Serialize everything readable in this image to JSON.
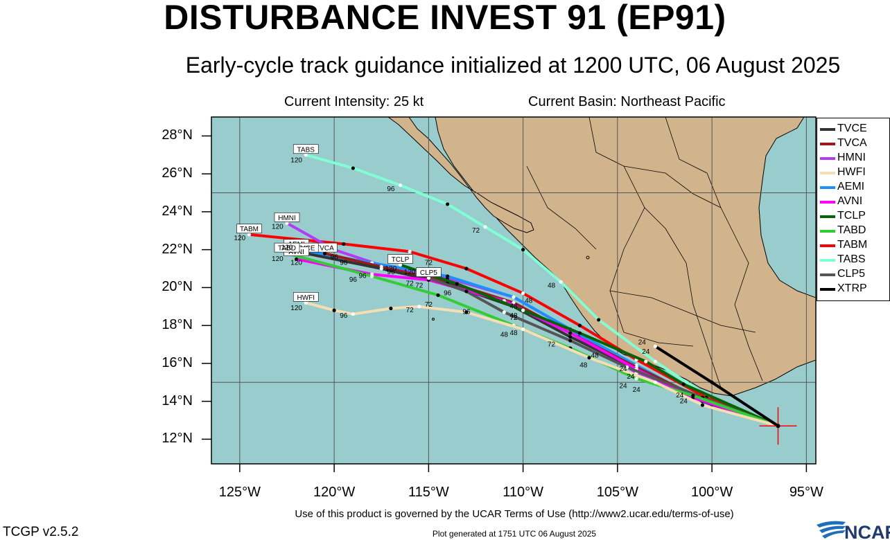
{
  "title": "DISTURBANCE INVEST 91 (EP91)",
  "subtitle": "Early-cycle track guidance initialized at 1200 UTC, 06 August 2025",
  "current_intensity": "Current Intensity: 25 kt",
  "current_basin": "Current Basin: Northeast Pacific",
  "lat_labels": [
    "28°N",
    "26°N",
    "24°N",
    "22°N",
    "20°N",
    "18°N",
    "16°N",
    "14°N",
    "12°N"
  ],
  "lon_labels": [
    "125°W",
    "120°W",
    "115°W",
    "110°W",
    "105°W",
    "100°W",
    "95°W"
  ],
  "terms": "Use of this product is governed by the UCAR Terms of Use (http://www2.ucar.edu/terms-of-use)",
  "generated": "Plot generated at 1751 UTC   06 August 2025",
  "version": "TCGP v2.5.2",
  "logo_text": "NCAR",
  "colors": {
    "ocean": "#99cccc",
    "land": "#d2b48c",
    "storm_marker": "#ff0000"
  },
  "legend": [
    {
      "name": "TVCE",
      "color": "#333333"
    },
    {
      "name": "TVCA",
      "color": "#9b1b1b"
    },
    {
      "name": "HMNI",
      "color": "#b23cf5"
    },
    {
      "name": "HWFI",
      "color": "#f5deb3"
    },
    {
      "name": "AEMI",
      "color": "#1e8fff"
    },
    {
      "name": "AVNI",
      "color": "#ff00ff"
    },
    {
      "name": "TCLP",
      "color": "#006400"
    },
    {
      "name": "TABD",
      "color": "#32cd32"
    },
    {
      "name": "TABM",
      "color": "#ff0000"
    },
    {
      "name": "TABS",
      "color": "#7fffd4"
    },
    {
      "name": "CLP5",
      "color": "#555555"
    },
    {
      "name": "XTRP",
      "color": "#000000"
    }
  ],
  "map": {
    "lon_range": [
      -126.5,
      -94.5
    ],
    "lat_range": [
      10.7,
      29
    ],
    "initial_position": {
      "lat": 12.7,
      "lon": -96.5
    },
    "tracks": [
      {
        "name": "TABS",
        "color": "#7fffd4",
        "label": "TABS",
        "label_pos": {
          "lat": 27.0,
          "lon": -121.5
        },
        "points": [
          [
            12.7,
            -96.5
          ],
          [
            14.1,
            -100.0
          ],
          [
            16.1,
            -103.0
          ],
          [
            18.3,
            -106.0
          ],
          [
            20.3,
            -108.0
          ],
          [
            22.0,
            -110.0
          ],
          [
            23.2,
            -112.0
          ],
          [
            24.4,
            -114.0
          ],
          [
            25.4,
            -116.5
          ],
          [
            26.3,
            -119.0
          ],
          [
            27.0,
            -121.5
          ]
        ],
        "hour_labels": [
          {
            "text": "24",
            "lat": 16.5,
            "lon": -103.5
          },
          {
            "text": "48",
            "lat": 20.0,
            "lon": -108.5
          },
          {
            "text": "72",
            "lat": 22.9,
            "lon": -112.5
          },
          {
            "text": "96",
            "lat": 25.1,
            "lon": -117.0
          },
          {
            "text": "120",
            "lat": 26.6,
            "lon": -122.0
          }
        ]
      },
      {
        "name": "TABM",
        "color": "#ff0000",
        "label": "TABM",
        "label_pos": {
          "lat": 22.8,
          "lon": -124.5
        },
        "points": [
          [
            12.7,
            -96.5
          ],
          [
            14.2,
            -100.3
          ],
          [
            16.2,
            -104.0
          ],
          [
            18.0,
            -107.0
          ],
          [
            19.7,
            -110.0
          ],
          [
            21.0,
            -113.0
          ],
          [
            21.9,
            -116.0
          ],
          [
            22.3,
            -119.5
          ],
          [
            22.8,
            -124.5
          ]
        ],
        "hour_labels": [
          {
            "text": "72",
            "lat": 21.2,
            "lon": -115.0
          },
          {
            "text": "120",
            "lat": 22.5,
            "lon": -125.0
          }
        ]
      },
      {
        "name": "HMNI",
        "color": "#b23cf5",
        "label": "HMNI",
        "label_pos": {
          "lat": 23.4,
          "lon": -122.5
        },
        "points": [
          [
            12.7,
            -96.5
          ],
          [
            13.8,
            -100.0
          ],
          [
            15.5,
            -104.0
          ],
          [
            17.5,
            -107.0
          ],
          [
            19.5,
            -110.5
          ],
          [
            20.5,
            -114.0
          ],
          [
            21.0,
            -117.0
          ],
          [
            22.0,
            -120.0
          ],
          [
            23.4,
            -122.5
          ]
        ],
        "hour_labels": [
          {
            "text": "96",
            "lat": 21.5,
            "lon": -120.0
          },
          {
            "text": "120",
            "lat": 23.1,
            "lon": -123.0
          }
        ]
      },
      {
        "name": "AEMI",
        "color": "#1e8fff",
        "label": "AEMI",
        "label_pos": {
          "lat": 22.0,
          "lon": -122.0
        },
        "points": [
          [
            12.7,
            -96.5
          ],
          [
            14.0,
            -100.5
          ],
          [
            15.9,
            -104.0
          ],
          [
            17.8,
            -107.5
          ],
          [
            19.5,
            -110.5
          ],
          [
            20.6,
            -114.0
          ],
          [
            21.3,
            -118.0
          ],
          [
            22.0,
            -122.0
          ]
        ],
        "hour_labels": [
          {
            "text": "96",
            "lat": 21.2,
            "lon": -119.5
          }
        ]
      },
      {
        "name": "TVCA",
        "color": "#9b1b1b",
        "label": "TVCA",
        "label_pos": {
          "lat": 21.8,
          "lon": -120.5
        },
        "points": [
          [
            12.7,
            -96.5
          ],
          [
            14.1,
            -100.5
          ],
          [
            15.8,
            -104.0
          ],
          [
            17.6,
            -107.5
          ],
          [
            19.2,
            -110.5
          ],
          [
            20.3,
            -114.0
          ],
          [
            21.1,
            -117.5
          ],
          [
            21.8,
            -120.5
          ]
        ],
        "hour_labels": []
      },
      {
        "name": "TVCE",
        "color": "#333333",
        "label": "TVCE",
        "label_pos": {
          "lat": 21.8,
          "lon": -121.5
        },
        "points": [
          [
            12.7,
            -96.5
          ],
          [
            14.0,
            -100.5
          ],
          [
            15.7,
            -104.0
          ],
          [
            17.4,
            -107.5
          ],
          [
            19.0,
            -110.5
          ],
          [
            20.2,
            -114.0
          ],
          [
            21.0,
            -117.5
          ],
          [
            21.8,
            -121.5
          ]
        ],
        "hour_labels": [
          {
            "text": "48",
            "lat": 18.9,
            "lon": -110.5
          }
        ]
      },
      {
        "name": "AVNI",
        "color": "#ff00ff",
        "label": "AVNI",
        "label_pos": {
          "lat": 21.6,
          "lon": -122.0
        },
        "points": [
          [
            12.7,
            -96.5
          ],
          [
            14.2,
            -101.0
          ],
          [
            15.7,
            -104.0
          ],
          [
            17.6,
            -107.5
          ],
          [
            19.3,
            -111.0
          ],
          [
            20.4,
            -115.0
          ],
          [
            20.7,
            -118.0
          ],
          [
            21.5,
            -122.0
          ]
        ],
        "hour_labels": [
          {
            "text": "120",
            "lat": 21.4,
            "lon": -123.0
          }
        ]
      },
      {
        "name": "TCLP",
        "color": "#006400",
        "label": "TCLP",
        "label_pos": {
          "lat": 21.2,
          "lon": -116.5
        },
        "points": [
          [
            12.7,
            -96.5
          ],
          [
            14.9,
            -101.5
          ],
          [
            16.1,
            -103.5
          ],
          [
            17.6,
            -107.0
          ],
          [
            18.8,
            -110.0
          ],
          [
            20.2,
            -113.5
          ],
          [
            21.2,
            -116.5
          ]
        ],
        "hour_labels": [
          {
            "text": "96",
            "lat": 20.7,
            "lon": -117.0
          },
          {
            "text": "120",
            "lat": 20.7,
            "lon": -116.0
          }
        ]
      },
      {
        "name": "CLP5",
        "color": "#555555",
        "label": "CLP5",
        "label_pos": {
          "lat": 20.5,
          "lon": -115.0
        },
        "points": [
          [
            12.7,
            -96.5
          ],
          [
            14.2,
            -100.5
          ],
          [
            15.8,
            -104.5
          ],
          [
            17.2,
            -107.5
          ],
          [
            18.7,
            -111.0
          ],
          [
            19.8,
            -113.0
          ],
          [
            20.5,
            -115.0
          ]
        ],
        "hour_labels": [
          {
            "text": "72",
            "lat": 20.0,
            "lon": -115.5
          }
        ]
      },
      {
        "name": "TABD",
        "color": "#32cd32",
        "label": "TABD",
        "label_pos": {
          "lat": 21.8,
          "lon": -122.5
        },
        "points": [
          [
            12.7,
            -96.5
          ],
          [
            14.3,
            -101.0
          ],
          [
            15.2,
            -104.0
          ],
          [
            16.8,
            -107.5
          ],
          [
            18.0,
            -110.5
          ],
          [
            19.6,
            -114.5
          ],
          [
            20.6,
            -118.0
          ],
          [
            21.8,
            -122.5
          ]
        ],
        "hour_labels": [
          {
            "text": "24",
            "lat": 14.5,
            "lon": -104.0
          },
          {
            "text": "48",
            "lat": 17.5,
            "lon": -110.5
          },
          {
            "text": "96",
            "lat": 20.3,
            "lon": -119.0
          }
        ]
      },
      {
        "name": "HWFI",
        "color": "#f5deb3",
        "label": "HWFI",
        "label_pos": {
          "lat": 19.2,
          "lon": -121.5
        },
        "points": [
          [
            12.7,
            -96.5
          ],
          [
            13.8,
            -100.5
          ],
          [
            15.0,
            -103.0
          ],
          [
            16.3,
            -106.5
          ],
          [
            17.8,
            -110.0
          ],
          [
            18.7,
            -113.0
          ],
          [
            19.0,
            -115.5
          ],
          [
            18.9,
            -117.0
          ],
          [
            18.6,
            -119.0
          ],
          [
            18.8,
            -120.0
          ],
          [
            19.2,
            -121.5
          ]
        ],
        "hour_labels": [
          {
            "text": "72",
            "lat": 18.7,
            "lon": -116.0
          },
          {
            "text": "96",
            "lat": 18.4,
            "lon": -119.5
          },
          {
            "text": "120",
            "lat": 18.8,
            "lon": -122.0
          }
        ]
      },
      {
        "name": "XTRP",
        "color": "#000000",
        "label": "",
        "label_pos": null,
        "points": [
          [
            12.7,
            -96.5
          ],
          [
            15.0,
            -100.0
          ],
          [
            16.9,
            -103.0
          ]
        ],
        "hour_labels": [
          {
            "text": "24",
            "lat": 17.0,
            "lon": -103.7
          }
        ]
      }
    ],
    "extra_hour_labels": [
      {
        "text": "24",
        "lat": 15.6,
        "lon": -104.7
      },
      {
        "text": "24",
        "lat": 15.2,
        "lon": -104.3
      },
      {
        "text": "24",
        "lat": 14.7,
        "lon": -104.7
      },
      {
        "text": "24",
        "lat": 14.2,
        "lon": -101.7
      },
      {
        "text": "24",
        "lat": 13.9,
        "lon": -101.5
      },
      {
        "text": "48",
        "lat": 16.3,
        "lon": -106.2
      },
      {
        "text": "48",
        "lat": 15.8,
        "lon": -106.8
      },
      {
        "text": "72",
        "lat": 16.9,
        "lon": -108.5
      },
      {
        "text": "48",
        "lat": 17.4,
        "lon": -111.0
      },
      {
        "text": "72",
        "lat": 18.3,
        "lon": -110.5
      },
      {
        "text": "96",
        "lat": 19.6,
        "lon": -114.0
      },
      {
        "text": "72",
        "lat": 19.0,
        "lon": -115.0
      },
      {
        "text": "96",
        "lat": 18.6,
        "lon": -113.0
      },
      {
        "text": "48",
        "lat": 19.2,
        "lon": -109.7
      },
      {
        "text": "48",
        "lat": 18.4,
        "lon": -110.5
      },
      {
        "text": "96",
        "lat": 20.5,
        "lon": -118.5
      },
      {
        "text": "72",
        "lat": 20.1,
        "lon": -116.0
      },
      {
        "text": "120",
        "lat": 20.9,
        "lon": -117.0
      },
      {
        "text": "120",
        "lat": 21.2,
        "lon": -122.0
      },
      {
        "text": "120",
        "lat": 22.0,
        "lon": -122.5
      }
    ]
  }
}
